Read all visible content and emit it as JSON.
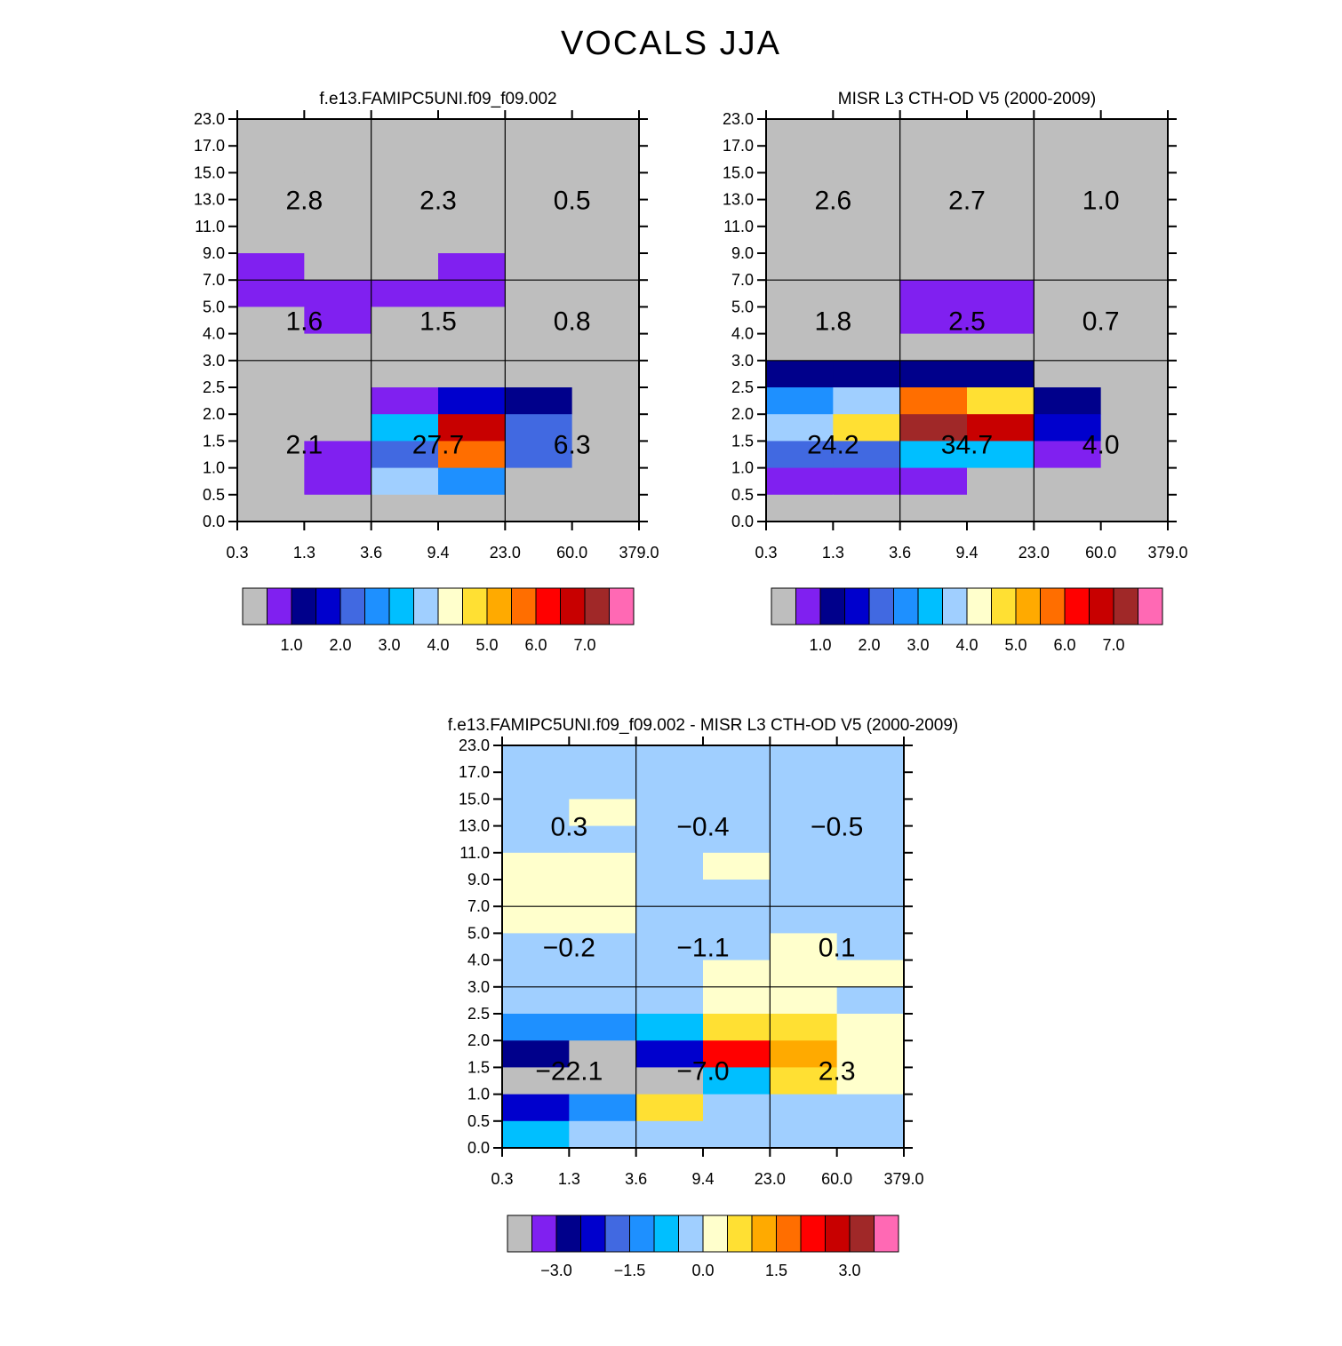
{
  "figure": {
    "title": "VOCALS JJA"
  },
  "colors": {
    "palette": [
      "#bebebe",
      "#8020f0",
      "#00008b",
      "#0000cd",
      "#4169e1",
      "#1e90ff",
      "#00bfff",
      "#a0cfff",
      "#ffffcc",
      "#ffe033",
      "#ffaa00",
      "#ff6e00",
      "#ff0000",
      "#c80000",
      "#a02828",
      "#ff69b4"
    ]
  },
  "chart_data": [
    {
      "type": "heatmap",
      "title": "f.e13.FAMIPC5UNI.f09_f09.002",
      "xticks": [
        "0.3",
        "1.3",
        "3.6",
        "9.4",
        "23.0",
        "60.0",
        "379.0"
      ],
      "yticks": [
        "0.0",
        "0.5",
        "1.0",
        "1.5",
        "2.0",
        "2.5",
        "3.0",
        "4.0",
        "5.0",
        "7.0",
        "9.0",
        "11.0",
        "13.0",
        "15.0",
        "17.0",
        "23.0"
      ],
      "grid_regions": {
        "x_breaks": [
          "3.6",
          "23.0"
        ],
        "y_breaks": [
          "3.0",
          "7.0"
        ]
      },
      "region_totals": [
        {
          "x": "0.3-3.6",
          "y": "7.0-23.0",
          "value": 2.8
        },
        {
          "x": "3.6-23.0",
          "y": "7.0-23.0",
          "value": 2.3
        },
        {
          "x": "23.0-379.0",
          "y": "7.0-23.0",
          "value": 0.5
        },
        {
          "x": "0.3-3.6",
          "y": "3.0-7.0",
          "value": 1.6
        },
        {
          "x": "3.6-23.0",
          "y": "3.0-7.0",
          "value": 1.5
        },
        {
          "x": "23.0-379.0",
          "y": "3.0-7.0",
          "value": 0.8
        },
        {
          "x": "0.3-3.6",
          "y": "0.0-3.0",
          "value": 2.1
        },
        {
          "x": "3.6-23.0",
          "y": "0.0-3.0",
          "value": 27.7
        },
        {
          "x": "23.0-379.0",
          "y": "0.0-3.0",
          "value": 6.3
        }
      ],
      "cell_color_index": [
        [
          0,
          0,
          0,
          0,
          0,
          0
        ],
        [
          0,
          0,
          0,
          0,
          0,
          0
        ],
        [
          0,
          0,
          0,
          0,
          0,
          0
        ],
        [
          0,
          0,
          0,
          0,
          0,
          0
        ],
        [
          0,
          0,
          0,
          0,
          0,
          0
        ],
        [
          1,
          0,
          0,
          1,
          0,
          0
        ],
        [
          1,
          1,
          1,
          1,
          0,
          0
        ],
        [
          0,
          1,
          0,
          0,
          0,
          0
        ],
        [
          0,
          0,
          0,
          0,
          0,
          0
        ],
        [
          0,
          0,
          0,
          0,
          0,
          0
        ],
        [
          0,
          0,
          1,
          3,
          2,
          0
        ],
        [
          0,
          0,
          6,
          13,
          4,
          0
        ],
        [
          0,
          1,
          4,
          11,
          4,
          0
        ],
        [
          0,
          1,
          7,
          5,
          0,
          0
        ],
        [
          0,
          0,
          0,
          0,
          0,
          0
        ]
      ],
      "colorbar": {
        "labels": [
          "1.0",
          "2.0",
          "3.0",
          "4.0",
          "5.0",
          "6.0",
          "7.0"
        ]
      }
    },
    {
      "type": "heatmap",
      "title": "MISR L3 CTH-OD V5 (2000-2009)",
      "xticks": [
        "0.3",
        "1.3",
        "3.6",
        "9.4",
        "23.0",
        "60.0",
        "379.0"
      ],
      "yticks": [
        "0.0",
        "0.5",
        "1.0",
        "1.5",
        "2.0",
        "2.5",
        "3.0",
        "4.0",
        "5.0",
        "7.0",
        "9.0",
        "11.0",
        "13.0",
        "15.0",
        "17.0",
        "23.0"
      ],
      "grid_regions": {
        "x_breaks": [
          "3.6",
          "23.0"
        ],
        "y_breaks": [
          "3.0",
          "7.0"
        ]
      },
      "region_totals": [
        {
          "x": "0.3-3.6",
          "y": "7.0-23.0",
          "value": 2.6
        },
        {
          "x": "3.6-23.0",
          "y": "7.0-23.0",
          "value": 2.7
        },
        {
          "x": "23.0-379.0",
          "y": "7.0-23.0",
          "value": 1.0
        },
        {
          "x": "0.3-3.6",
          "y": "3.0-7.0",
          "value": 1.8
        },
        {
          "x": "3.6-23.0",
          "y": "3.0-7.0",
          "value": 2.5
        },
        {
          "x": "23.0-379.0",
          "y": "3.0-7.0",
          "value": 0.7
        },
        {
          "x": "0.3-3.6",
          "y": "0.0-3.0",
          "value": 24.2
        },
        {
          "x": "3.6-23.0",
          "y": "0.0-3.0",
          "value": 34.7
        },
        {
          "x": "23.0-379.0",
          "y": "0.0-3.0",
          "value": 4.0
        }
      ],
      "cell_color_index": [
        [
          0,
          0,
          0,
          0,
          0,
          0
        ],
        [
          0,
          0,
          0,
          0,
          0,
          0
        ],
        [
          0,
          0,
          0,
          0,
          0,
          0
        ],
        [
          0,
          0,
          0,
          0,
          0,
          0
        ],
        [
          0,
          0,
          0,
          0,
          0,
          0
        ],
        [
          0,
          0,
          0,
          0,
          0,
          0
        ],
        [
          0,
          0,
          1,
          1,
          0,
          0
        ],
        [
          0,
          0,
          1,
          1,
          0,
          0
        ],
        [
          0,
          0,
          0,
          0,
          0,
          0
        ],
        [
          2,
          2,
          2,
          2,
          0,
          0
        ],
        [
          5,
          7,
          11,
          9,
          2,
          0
        ],
        [
          7,
          9,
          14,
          13,
          3,
          0
        ],
        [
          4,
          4,
          6,
          6,
          1,
          0
        ],
        [
          1,
          1,
          1,
          0,
          0,
          0
        ],
        [
          0,
          0,
          0,
          0,
          0,
          0
        ]
      ],
      "colorbar": {
        "labels": [
          "1.0",
          "2.0",
          "3.0",
          "4.0",
          "5.0",
          "6.0",
          "7.0"
        ]
      }
    },
    {
      "type": "heatmap",
      "title": "f.e13.FAMIPC5UNI.f09_f09.002 - MISR L3 CTH-OD V5 (2000-2009)",
      "xticks": [
        "0.3",
        "1.3",
        "3.6",
        "9.4",
        "23.0",
        "60.0",
        "379.0"
      ],
      "yticks": [
        "0.0",
        "0.5",
        "1.0",
        "1.5",
        "2.0",
        "2.5",
        "3.0",
        "4.0",
        "5.0",
        "7.0",
        "9.0",
        "11.0",
        "13.0",
        "15.0",
        "17.0",
        "23.0"
      ],
      "grid_regions": {
        "x_breaks": [
          "3.6",
          "23.0"
        ],
        "y_breaks": [
          "3.0",
          "7.0"
        ]
      },
      "region_totals": [
        {
          "x": "0.3-3.6",
          "y": "7.0-23.0",
          "value": 0.3
        },
        {
          "x": "3.6-23.0",
          "y": "7.0-23.0",
          "value": -0.4
        },
        {
          "x": "23.0-379.0",
          "y": "7.0-23.0",
          "value": -0.5
        },
        {
          "x": "0.3-3.6",
          "y": "3.0-7.0",
          "value": -0.2
        },
        {
          "x": "3.6-23.0",
          "y": "3.0-7.0",
          "value": -1.1
        },
        {
          "x": "23.0-379.0",
          "y": "3.0-7.0",
          "value": 0.1
        },
        {
          "x": "0.3-3.6",
          "y": "0.0-3.0",
          "value": -22.1
        },
        {
          "x": "3.6-23.0",
          "y": "0.0-3.0",
          "value": -7.0
        },
        {
          "x": "23.0-379.0",
          "y": "0.0-3.0",
          "value": 2.3
        }
      ],
      "cell_color_index": [
        [
          7,
          7,
          7,
          7,
          7,
          7
        ],
        [
          7,
          7,
          7,
          7,
          7,
          7
        ],
        [
          7,
          8,
          7,
          7,
          7,
          7
        ],
        [
          7,
          7,
          7,
          7,
          7,
          7
        ],
        [
          8,
          8,
          7,
          8,
          7,
          7
        ],
        [
          8,
          8,
          7,
          7,
          7,
          7
        ],
        [
          8,
          8,
          7,
          7,
          7,
          7
        ],
        [
          7,
          7,
          7,
          7,
          8,
          7
        ],
        [
          7,
          7,
          7,
          8,
          8,
          8
        ],
        [
          7,
          7,
          7,
          8,
          8,
          7
        ],
        [
          5,
          5,
          6,
          9,
          9,
          8
        ],
        [
          2,
          0,
          3,
          12,
          10,
          8
        ],
        [
          0,
          0,
          0,
          6,
          9,
          8
        ],
        [
          3,
          5,
          9,
          7,
          7,
          7
        ],
        [
          6,
          7,
          7,
          7,
          7,
          7
        ]
      ],
      "colorbar": {
        "labels": [
          "-3.0",
          "-1.5",
          "0.0",
          "1.5",
          "3.0"
        ]
      }
    }
  ]
}
